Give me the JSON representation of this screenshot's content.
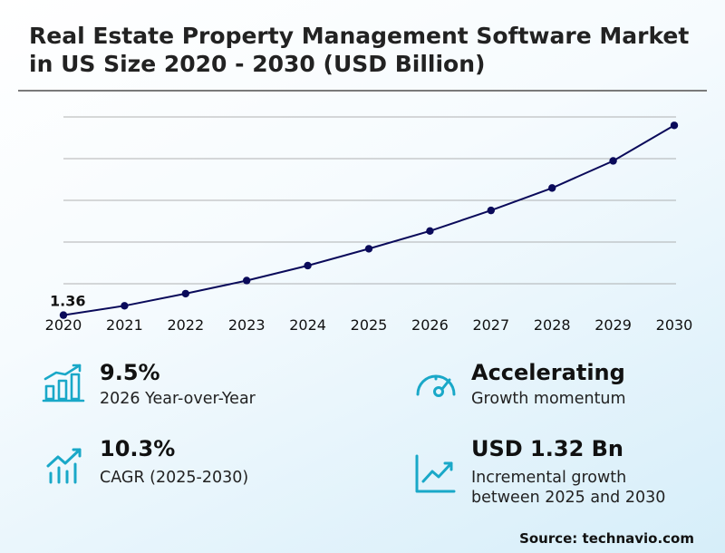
{
  "title": "Real Estate Property Management Software Market in US Size 2020 - 2030 (USD Billion)",
  "chart_data": {
    "type": "line",
    "title": "Real Estate Property Management Software Market in US Size 2020 - 2030 (USD Billion)",
    "xlabel": "",
    "ylabel": "",
    "x": [
      "2020",
      "2021",
      "2022",
      "2023",
      "2024",
      "2025",
      "2026",
      "2027",
      "2028",
      "2029",
      "2030"
    ],
    "series": [
      {
        "values": [
          1.36,
          1.46,
          1.59,
          1.73,
          1.89,
          2.07,
          2.26,
          2.48,
          2.72,
          3.01,
          3.39
        ]
      }
    ],
    "data_labels": [
      {
        "index": 0,
        "text": "1.36"
      }
    ],
    "ylim": [
      1.24,
      3.48
    ],
    "grid": true,
    "line_color": "#0a0a5a"
  },
  "stats": [
    {
      "value": "9.5%",
      "label": "2026 Year-over-Year",
      "icon": "bar-growth-icon"
    },
    {
      "value": "Accelerating",
      "label": "Growth momentum",
      "icon": "speedometer-icon"
    },
    {
      "value": "10.3%",
      "label": "CAGR (2025-2030)",
      "icon": "trend-bars-icon"
    },
    {
      "value": "USD 1.32 Bn",
      "label_line1": "Incremental growth",
      "label_line2": "between 2025 and 2030",
      "icon": "line-chart-icon"
    }
  ],
  "source": "Source: technavio.com",
  "colors": {
    "accent": "#19a8c8",
    "line": "#0a0a5a",
    "grid": "#999999"
  }
}
